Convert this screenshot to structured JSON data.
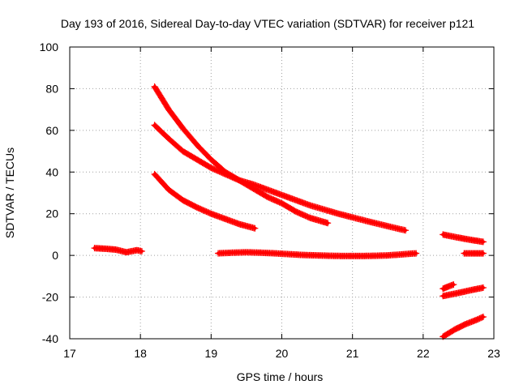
{
  "chart_data": {
    "type": "scatter",
    "title": "Day 193 of 2016, Sidereal Day-to-day VTEC variation (SDTVAR) for receiver p121",
    "xlabel": "GPS time / hours",
    "ylabel": "SDTVAR / TECUs",
    "xlim": [
      17,
      23
    ],
    "ylim": [
      -40,
      100
    ],
    "xticks": [
      17,
      18,
      19,
      20,
      21,
      22,
      23
    ],
    "yticks": [
      -40,
      -20,
      0,
      20,
      40,
      60,
      80,
      100
    ],
    "grid": true,
    "marker": "plus",
    "color": "#ff0000",
    "series": [
      {
        "name": "s1",
        "x": [
          17.35,
          17.5,
          17.65,
          17.8,
          17.95,
          18.02
        ],
        "y": [
          3.5,
          3.2,
          2.8,
          1.5,
          2.5,
          2.0
        ]
      },
      {
        "name": "s2",
        "x": [
          18.2,
          18.4,
          18.6,
          18.8,
          19.0,
          19.2,
          19.4,
          19.6,
          19.8,
          20.0,
          20.2,
          20.4,
          20.65
        ],
        "y": [
          81,
          70,
          61,
          53,
          46,
          40,
          36,
          32,
          28,
          25,
          21,
          18,
          15.5
        ]
      },
      {
        "name": "s3",
        "x": [
          18.2,
          18.4,
          18.6,
          18.8,
          19.0,
          19.2,
          19.4,
          19.6,
          19.8,
          20.0,
          20.4,
          20.8,
          21.2,
          21.5,
          21.75
        ],
        "y": [
          62.5,
          56,
          50,
          46,
          42,
          39,
          36,
          34,
          31.5,
          29,
          24,
          20,
          16.5,
          14,
          12
        ]
      },
      {
        "name": "s4",
        "x": [
          18.2,
          18.4,
          18.6,
          18.8,
          19.0,
          19.2,
          19.4,
          19.62
        ],
        "y": [
          39,
          31.5,
          26.5,
          23,
          20,
          17.5,
          15,
          13
        ]
      },
      {
        "name": "s5",
        "x": [
          19.1,
          19.3,
          19.5,
          19.7,
          19.9,
          20.1,
          20.3,
          20.5,
          20.7,
          20.9,
          21.1,
          21.3,
          21.5,
          21.7,
          21.9
        ],
        "y": [
          1.0,
          1.3,
          1.5,
          1.3,
          1.0,
          0.6,
          0.2,
          0.0,
          -0.2,
          -0.3,
          -0.3,
          -0.2,
          0.0,
          0.5,
          1.0
        ]
      },
      {
        "name": "s6",
        "x": [
          22.28,
          22.5,
          22.7,
          22.85
        ],
        "y": [
          10,
          8.5,
          7.3,
          6.5
        ]
      },
      {
        "name": "s7",
        "x": [
          22.58,
          22.7,
          22.85
        ],
        "y": [
          1.0,
          1.0,
          1.0
        ]
      },
      {
        "name": "s8",
        "x": [
          22.28,
          22.35,
          22.43
        ],
        "y": [
          -16,
          -15,
          -14
        ]
      },
      {
        "name": "s9",
        "x": [
          22.28,
          22.5,
          22.7,
          22.85
        ],
        "y": [
          -19.5,
          -18,
          -16.5,
          -15.5
        ]
      },
      {
        "name": "s10",
        "x": [
          22.28,
          22.45,
          22.6,
          22.75,
          22.85
        ],
        "y": [
          -39,
          -35.5,
          -33,
          -31,
          -29.5
        ]
      }
    ]
  }
}
